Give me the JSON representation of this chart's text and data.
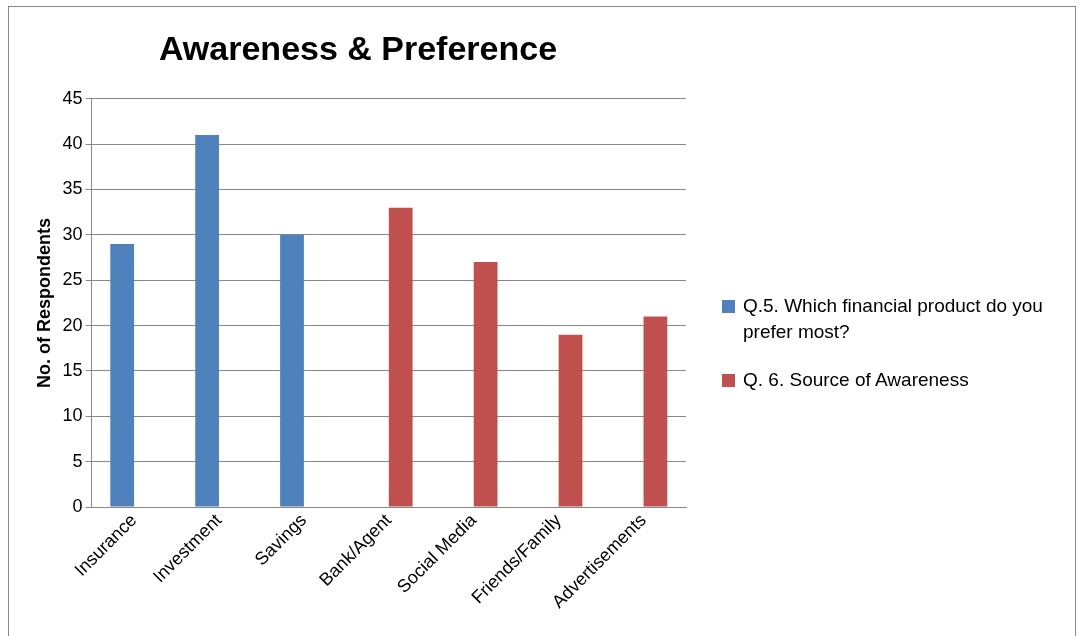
{
  "chart_data": {
    "type": "bar",
    "title": "Awareness & Preference",
    "ylabel": "No. of Respondents",
    "categories": [
      "Insurance",
      "Investment",
      "Savings",
      "Bank/Agent",
      "Social Media",
      "Friends/Family",
      "Advertisements"
    ],
    "series": [
      {
        "name": "Q.5. Which financial product do you prefer most?",
        "color": "#4f81bd",
        "values": [
          29,
          41,
          30,
          null,
          null,
          null,
          null
        ]
      },
      {
        "name": "Q. 6. Source of Awareness",
        "color": "#c0504d",
        "values": [
          null,
          null,
          null,
          33,
          27,
          19,
          21
        ]
      }
    ],
    "ylim": [
      0,
      45
    ],
    "yticks": [
      0,
      5,
      10,
      15,
      20,
      25,
      30,
      35,
      40,
      45
    ],
    "grid": "y",
    "legend": "right"
  }
}
